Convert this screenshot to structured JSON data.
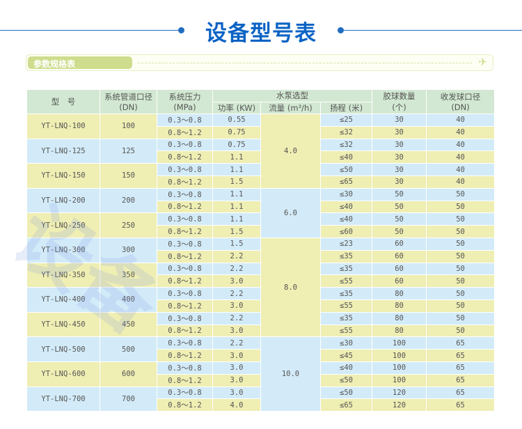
{
  "title": "设备型号表",
  "section_label": "参数规格表",
  "colors": {
    "accent": "#0b63c4",
    "header": "#d2e8d2",
    "yellow": "#efeeb3",
    "blue": "#d3ebf8"
  },
  "header": {
    "model": "型　号",
    "diameter": "系统管道口径",
    "diameter_unit": "(DN)",
    "pressure": "系统压力",
    "pressure_unit": "(MPa)",
    "pump": "水泵选型",
    "power": "功率 (KW)",
    "flow": "流量 (m³/h)",
    "head": "扬程 (米)",
    "balls": "胶球数量",
    "balls_unit": "(个)",
    "port": "收发球口径",
    "port_unit": "(DN)"
  },
  "models": [
    {
      "model": "YT-LNQ-100",
      "dn": "100",
      "rows": [
        [
          "0.3～0.8",
          "0.55",
          "≤25",
          "30",
          "40"
        ],
        [
          "0.8～1.2",
          "0.75",
          "≤32",
          "30",
          "40"
        ]
      ]
    },
    {
      "model": "YT-LNQ-125",
      "dn": "125",
      "rows": [
        [
          "0.3～0.8",
          "0.75",
          "≤32",
          "30",
          "40"
        ],
        [
          "0.8～1.2",
          "1.1",
          "≤40",
          "30",
          "40"
        ]
      ]
    },
    {
      "model": "YT-LNQ-150",
      "dn": "150",
      "rows": [
        [
          "0.3～0.8",
          "1.1",
          "≤50",
          "30",
          "40"
        ],
        [
          "0.8～1.2",
          "1.5",
          "≤65",
          "30",
          "40"
        ]
      ]
    },
    {
      "model": "YT-LNQ-200",
      "dn": "200",
      "rows": [
        [
          "0.3～0.8",
          "1.1",
          "≤30",
          "50",
          "50"
        ],
        [
          "0.8～1.2",
          "1.1",
          "≤40",
          "50",
          "50"
        ]
      ]
    },
    {
      "model": "YT-LNQ-250",
      "dn": "250",
      "rows": [
        [
          "0.3～0.8",
          "1.1",
          "≤40",
          "50",
          "50"
        ],
        [
          "0.8～1.2",
          "1.5",
          "≤60",
          "50",
          "50"
        ]
      ]
    },
    {
      "model": "YT-LNQ-300",
      "dn": "300",
      "rows": [
        [
          "0.3～0.8",
          "1.5",
          "≤23",
          "60",
          "50"
        ],
        [
          "0.8～1.2",
          "2.2",
          "≤35",
          "60",
          "50"
        ]
      ]
    },
    {
      "model": "YT-LNQ-350",
      "dn": "350",
      "rows": [
        [
          "0.3～0.8",
          "2.2",
          "≤35",
          "60",
          "50"
        ],
        [
          "0.8～1.2",
          "3.0",
          "≤55",
          "60",
          "50"
        ]
      ]
    },
    {
      "model": "YT-LNQ-400",
      "dn": "400",
      "rows": [
        [
          "0.3～0.8",
          "2.2",
          "≤35",
          "80",
          "50"
        ],
        [
          "0.8～1.2",
          "3.0",
          "≤55",
          "80",
          "50"
        ]
      ]
    },
    {
      "model": "YT-LNQ-450",
      "dn": "450",
      "rows": [
        [
          "0.3～0.8",
          "2.2",
          "≤35",
          "80",
          "50"
        ],
        [
          "0.8～1.2",
          "3.0",
          "≤55",
          "80",
          "50"
        ]
      ]
    },
    {
      "model": "YT-LNQ-500",
      "dn": "500",
      "rows": [
        [
          "0.3～0.8",
          "2.2",
          "≤30",
          "100",
          "65"
        ],
        [
          "0.8～1.2",
          "3.0",
          "≤45",
          "100",
          "65"
        ]
      ]
    },
    {
      "model": "YT-LNQ-600",
      "dn": "600",
      "rows": [
        [
          "0.3～0.8",
          "3.0",
          "≤40",
          "100",
          "65"
        ],
        [
          "0.8～1.2",
          "3.0",
          "≤50",
          "100",
          "65"
        ]
      ]
    },
    {
      "model": "YT-LNQ-700",
      "dn": "700",
      "rows": [
        [
          "0.3～0.8",
          "3.0",
          "≤50",
          "120",
          "65"
        ],
        [
          "0.8～1.2",
          "4.0",
          "≤65",
          "120",
          "65"
        ]
      ]
    }
  ],
  "flow_groups": [
    {
      "value": "4.0",
      "models": 3
    },
    {
      "value": "6.0",
      "models": 2
    },
    {
      "value": "8.0",
      "models": 4
    },
    {
      "value": "10.0",
      "models": 3
    }
  ]
}
